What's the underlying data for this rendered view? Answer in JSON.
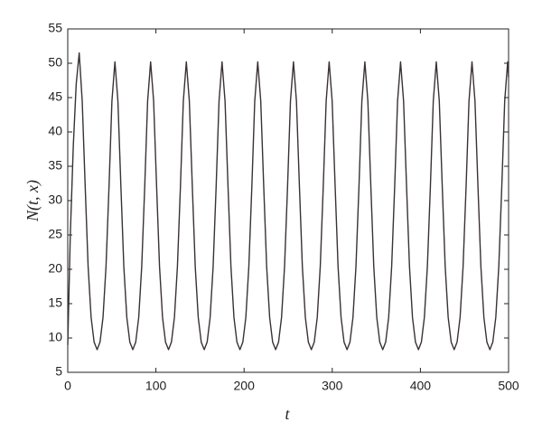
{
  "chart_data": {
    "type": "line",
    "xlabel": "t",
    "ylabel": "N(t, x)",
    "x": [
      0,
      2.9,
      6.3,
      9.6,
      13,
      16.4,
      19.8,
      23.1,
      26.5,
      29.9,
      33.3,
      36.6,
      40,
      43.4,
      46.8,
      50.1,
      53.5,
      56.9,
      60.3,
      63.6,
      67,
      70.4,
      73.8,
      77.1,
      80.5,
      83.9,
      87.3,
      90.6,
      94,
      97.4,
      100.8,
      104.1,
      107.5,
      110.9,
      114.3,
      117.6,
      121,
      124.4,
      127.8,
      131.1,
      134.5,
      137.9,
      141.3,
      144.6,
      148,
      151.4,
      154.8,
      158.1,
      161.5,
      164.9,
      168.3,
      171.6,
      175,
      178.4,
      181.8,
      185.1,
      188.5,
      191.9,
      195.3,
      198.6,
      202,
      205.4,
      208.8,
      212.1,
      215.5,
      218.9,
      222.3,
      225.6,
      229,
      232.4,
      235.8,
      239.1,
      242.5,
      245.9,
      249.3,
      252.6,
      256,
      259.4,
      262.8,
      266.1,
      269.5,
      272.9,
      276.3,
      279.6,
      283,
      286.4,
      289.8,
      293.1,
      296.5,
      299.9,
      303.3,
      306.6,
      310,
      313.4,
      316.8,
      320.1,
      323.5,
      326.9,
      330.3,
      333.6,
      337,
      340.4,
      343.8,
      347.1,
      350.5,
      353.9,
      357.3,
      360.6,
      364,
      367.4,
      370.8,
      374.1,
      377.5,
      380.9,
      384.3,
      387.6,
      391,
      394.4,
      397.8,
      401.1,
      404.5,
      407.9,
      411.3,
      414.6,
      418,
      421.4,
      424.8,
      428.1,
      431.5,
      434.9,
      438.3,
      441.6,
      445,
      448.4,
      451.8,
      455.1,
      458.5,
      461.9,
      465.3,
      468.6,
      472,
      475.4,
      478.8,
      482.1,
      485.5,
      488.9,
      492.3,
      495.6,
      499,
      500
    ],
    "series": [
      {
        "color": "#3a3232",
        "values": [
          9,
          25,
          38,
          47,
          51.5,
          44.5,
          32,
          20.4,
          13,
          9.4,
          8.3,
          9.4,
          13,
          20.4,
          32,
          44.5,
          50.2,
          44.5,
          32,
          20.4,
          13,
          9.4,
          8.3,
          9.4,
          13,
          20.4,
          32,
          44.5,
          50.2,
          44.5,
          32,
          20.4,
          13,
          9.4,
          8.3,
          9.4,
          13,
          20.4,
          32,
          44.5,
          50.2,
          44.5,
          32,
          20.4,
          13,
          9.4,
          8.3,
          9.4,
          13,
          20.4,
          32,
          44.5,
          50.2,
          44.5,
          32,
          20.4,
          13,
          9.4,
          8.3,
          9.4,
          13,
          20.4,
          32,
          44.5,
          50.2,
          44.5,
          32,
          20.4,
          13,
          9.4,
          8.3,
          9.4,
          13,
          20.4,
          32,
          44.5,
          50.2,
          44.5,
          32,
          20.4,
          13,
          9.4,
          8.3,
          9.4,
          13,
          20.4,
          32,
          44.5,
          50.2,
          44.5,
          32,
          20.4,
          13,
          9.4,
          8.3,
          9.4,
          13,
          20.4,
          32,
          44.5,
          50.2,
          44.5,
          32,
          20.4,
          13,
          9.4,
          8.3,
          9.4,
          13,
          20.4,
          32,
          44.5,
          50.2,
          44.5,
          32,
          20.4,
          13,
          9.4,
          8.3,
          9.4,
          13,
          20.4,
          32,
          44.5,
          50.2,
          44.5,
          32,
          20.4,
          13,
          9.4,
          8.3,
          9.4,
          13,
          20.4,
          32,
          44.5,
          50.2,
          44.5,
          32,
          20.4,
          13,
          9.4,
          8.3,
          9.4,
          13,
          20.4,
          32,
          44.5,
          50.2,
          48
        ]
      }
    ],
    "xlim": [
      0,
      500
    ],
    "xticks": [
      0,
      100,
      200,
      300,
      400,
      500
    ],
    "ylim": [
      5,
      55
    ],
    "yticks": [
      5,
      10,
      15,
      20,
      25,
      30,
      35,
      40,
      45,
      50,
      55
    ]
  }
}
